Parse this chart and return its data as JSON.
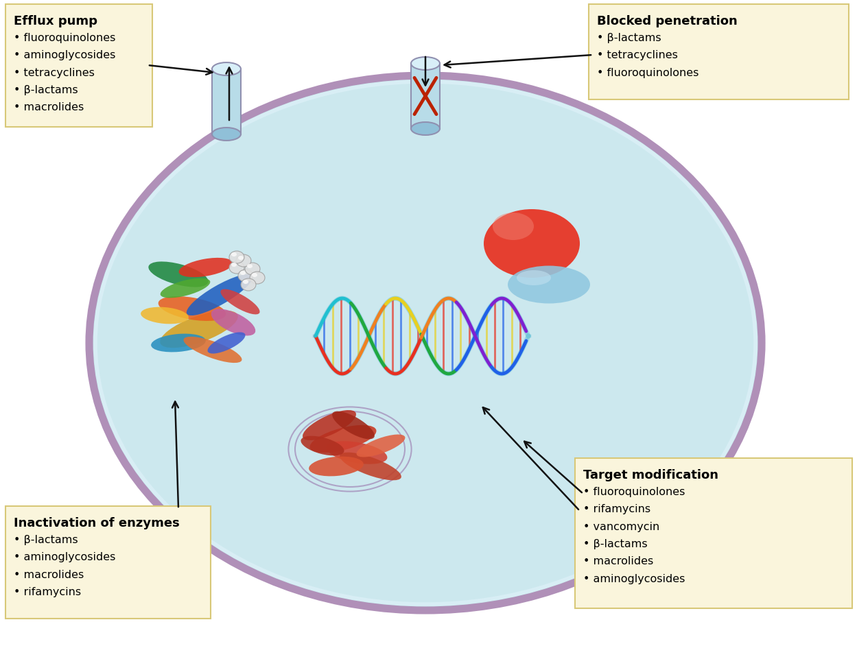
{
  "bg_color": "#ffffff",
  "cell_fill": "#cce8ee",
  "cell_edge": "#b090b8",
  "cell_edge_inner": "#c8e0e8",
  "box_fill": "#faf5dc",
  "box_edge": "#d8c878",
  "efflux_title": "Efflux pump",
  "efflux_items": [
    "• fluoroquinolones",
    "• aminoglycosides",
    "• tetracyclines",
    "• β-lactams",
    "• macrolides"
  ],
  "blocked_title": "Blocked penetration",
  "blocked_items": [
    "• β-lactams",
    "• tetracyclines",
    "• fluoroquinolones"
  ],
  "enzyme_title": "Inactivation of enzymes",
  "enzyme_items": [
    "• β-lactams",
    "• aminoglycosides",
    "• macrolides",
    "• rifamycins"
  ],
  "target_title": "Target modification",
  "target_items": [
    "• fluoroquinolones",
    "• rifamycins",
    "• vancomycin",
    "• β-lactams",
    "• macrolides",
    "• aminoglycosides"
  ],
  "arrow_color": "#111111",
  "cross_color": "#bb2200",
  "title_fontsize": 13,
  "item_fontsize": 11.5
}
